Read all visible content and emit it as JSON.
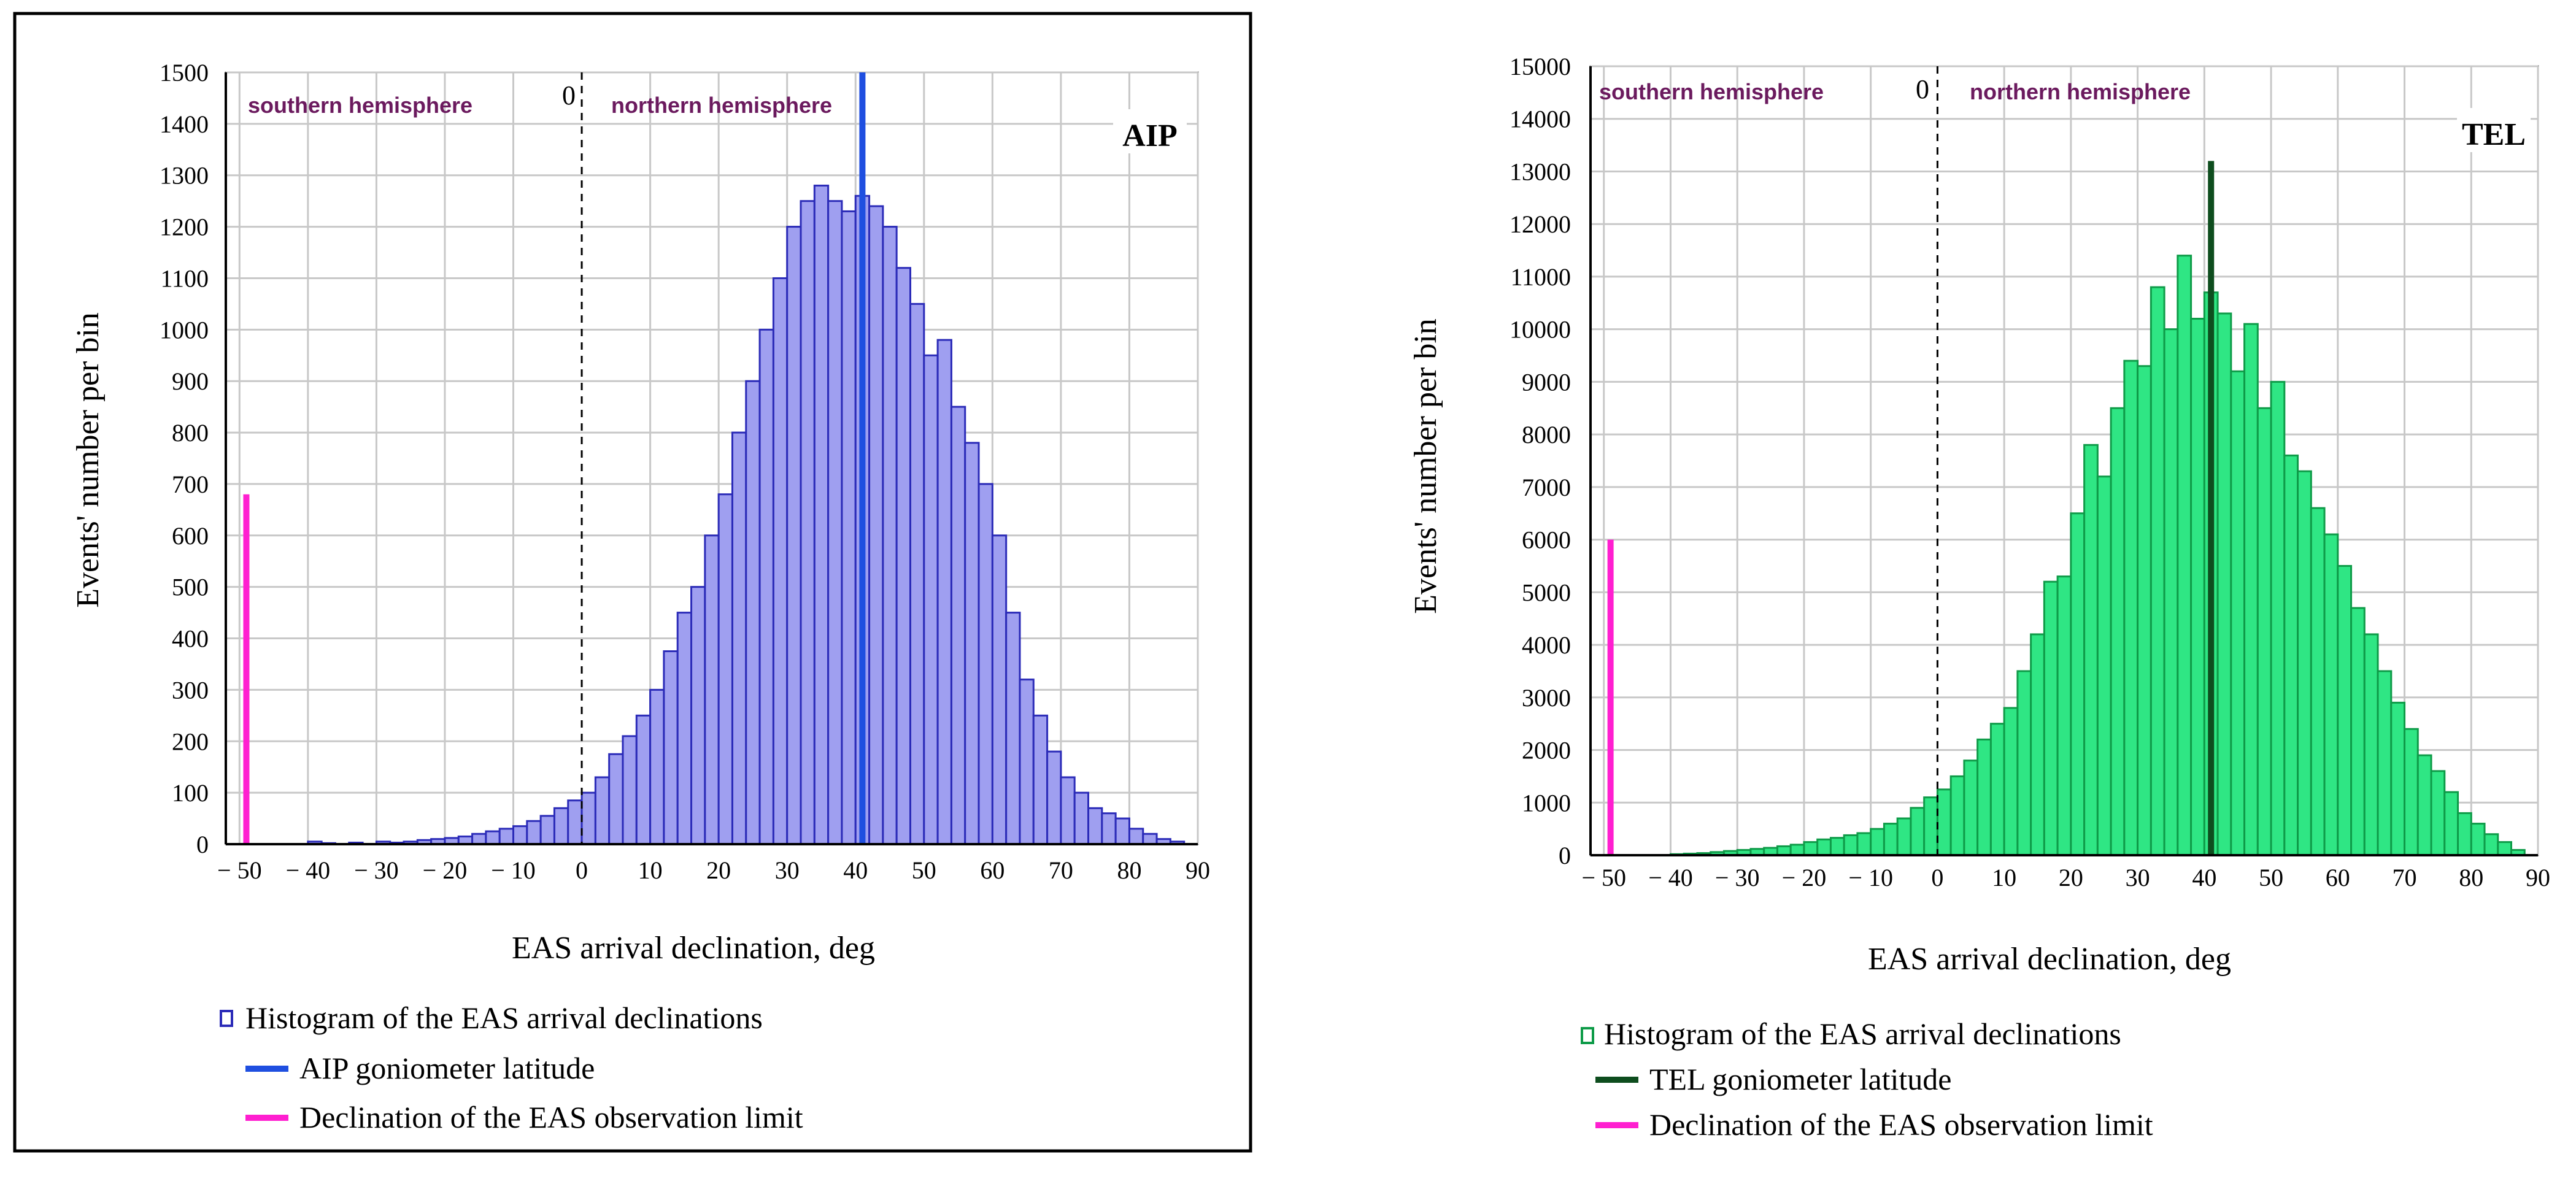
{
  "chart_data": [
    {
      "type": "bar",
      "tag": "AIP",
      "colors": {
        "bar_fill": "#9f9ff0",
        "bar_stroke": "#2b2bb8",
        "latitude_line": "#1f4fe0",
        "limit_line": "#ff1fd0"
      },
      "title": "",
      "xlabel": "EAS arrival  declination, deg",
      "ylabel": "Events' number per bin",
      "xlim": [
        -52,
        90
      ],
      "ylim": [
        0,
        1500
      ],
      "xticks": [
        -50,
        -40,
        -30,
        -20,
        -10,
        0,
        10,
        20,
        30,
        40,
        50,
        60,
        70,
        80,
        90
      ],
      "xtick_labels": [
        "− 50",
        "− 40",
        "− 30",
        "− 20",
        "− 10",
        "0",
        "10",
        "20",
        "30",
        "40",
        "50",
        "60",
        "70",
        "80",
        "90"
      ],
      "yticks": [
        0,
        100,
        200,
        300,
        400,
        500,
        600,
        700,
        800,
        900,
        1000,
        1100,
        1200,
        1300,
        1400,
        1500
      ],
      "ytick_labels": [
        "0",
        "100",
        "200",
        "300",
        "400",
        "500",
        "600",
        "700",
        "800",
        "900",
        "1000",
        "1100",
        "1200",
        "1300",
        "1400",
        "1500"
      ],
      "grid": true,
      "bin_width": 2,
      "bin_starts": [
        -50,
        -48,
        -46,
        -44,
        -42,
        -40,
        -38,
        -36,
        -34,
        -32,
        -30,
        -28,
        -26,
        -24,
        -22,
        -20,
        -18,
        -16,
        -14,
        -12,
        -10,
        -8,
        -6,
        -4,
        -2,
        0,
        2,
        4,
        6,
        8,
        10,
        12,
        14,
        16,
        18,
        20,
        22,
        24,
        26,
        28,
        30,
        32,
        34,
        36,
        38,
        40,
        42,
        44,
        46,
        48,
        50,
        52,
        54,
        56,
        58,
        60,
        62,
        64,
        66,
        68,
        70,
        72,
        74,
        76,
        78,
        80,
        82,
        84,
        86
      ],
      "values": [
        0,
        0,
        0,
        0,
        0,
        5,
        2,
        0,
        3,
        0,
        5,
        3,
        5,
        8,
        10,
        12,
        15,
        20,
        25,
        30,
        35,
        45,
        55,
        70,
        85,
        100,
        130,
        175,
        210,
        250,
        300,
        375,
        450,
        500,
        600,
        680,
        800,
        900,
        1000,
        1100,
        1200,
        1250,
        1280,
        1250,
        1230,
        1260,
        1240,
        1200,
        1120,
        1050,
        950,
        980,
        850,
        780,
        700,
        600,
        450,
        320,
        250,
        180,
        130,
        100,
        70,
        60,
        50,
        30,
        20,
        10,
        5
      ],
      "reference_lines": {
        "goniometer_latitude": 41,
        "observation_limit": -49,
        "observation_limit_top": 680,
        "latitude_top": 1500
      },
      "hemisphere_labels": {
        "south": "southern hemisphere",
        "north": "northern hemisphere",
        "zero": "0"
      },
      "legend": [
        {
          "label": "Histogram of the EAS arrival declinations",
          "kind": "bar"
        },
        {
          "label": "AIP goniometer latitude",
          "kind": "latitude"
        },
        {
          "label": "Declination of the EAS observation limit",
          "kind": "limit"
        }
      ]
    },
    {
      "type": "bar",
      "tag": "TEL",
      "colors": {
        "bar_fill": "#2fe684",
        "bar_stroke": "#0e9b48",
        "latitude_line": "#0e4d1e",
        "limit_line": "#ff1fd0"
      },
      "title": "",
      "xlabel": "EAS arrival  declination, deg",
      "ylabel": "Events' number per bin",
      "xlim": [
        -52,
        90
      ],
      "ylim": [
        0,
        15000
      ],
      "xticks": [
        -50,
        -40,
        -30,
        -20,
        -10,
        0,
        10,
        20,
        30,
        40,
        50,
        60,
        70,
        80,
        90
      ],
      "xtick_labels": [
        "− 50",
        "− 40",
        "− 30",
        "− 20",
        "− 10",
        "0",
        "10",
        "20",
        "30",
        "40",
        "50",
        "60",
        "70",
        "80",
        "90"
      ],
      "yticks": [
        0,
        1000,
        2000,
        3000,
        4000,
        5000,
        6000,
        7000,
        8000,
        9000,
        10000,
        11000,
        12000,
        13000,
        14000,
        15000
      ],
      "ytick_labels": [
        "0",
        "1000",
        "2000",
        "3000",
        "4000",
        "5000",
        "6000",
        "7000",
        "8000",
        "9000",
        "10000",
        "11000",
        "12000",
        "13000",
        "14000",
        "15000"
      ],
      "grid": true,
      "bin_width": 2,
      "bin_starts": [
        -50,
        -48,
        -46,
        -44,
        -42,
        -40,
        -38,
        -36,
        -34,
        -32,
        -30,
        -28,
        -26,
        -24,
        -22,
        -20,
        -18,
        -16,
        -14,
        -12,
        -10,
        -8,
        -6,
        -4,
        -2,
        0,
        2,
        4,
        6,
        8,
        10,
        12,
        14,
        16,
        18,
        20,
        22,
        24,
        26,
        28,
        30,
        32,
        34,
        36,
        38,
        40,
        42,
        44,
        46,
        48,
        50,
        52,
        54,
        56,
        58,
        60,
        62,
        64,
        66,
        68,
        70,
        72,
        74,
        76,
        78,
        80,
        82,
        84,
        86
      ],
      "values": [
        0,
        0,
        0,
        0,
        0,
        20,
        30,
        40,
        60,
        80,
        100,
        120,
        140,
        170,
        200,
        250,
        300,
        330,
        380,
        420,
        500,
        600,
        700,
        900,
        1100,
        1250,
        1500,
        1800,
        2200,
        2500,
        2800,
        3500,
        4200,
        5200,
        5300,
        6500,
        7800,
        7200,
        8500,
        9400,
        9300,
        10800,
        10000,
        11400,
        10200,
        10700,
        10300,
        9200,
        10100,
        8500,
        9000,
        7600,
        7300,
        6600,
        6100,
        5500,
        4700,
        4200,
        3500,
        2900,
        2400,
        1900,
        1600,
        1200,
        800,
        600,
        400,
        250,
        100
      ],
      "reference_lines": {
        "goniometer_latitude": 41,
        "observation_limit": -49,
        "observation_limit_top": 6000,
        "latitude_top": 13200
      },
      "hemisphere_labels": {
        "south": "southern hemisphere",
        "north": "northern hemisphere",
        "zero": "0"
      },
      "legend": [
        {
          "label": "Histogram of the EAS arrival declinations",
          "kind": "bar"
        },
        {
          "label": "TEL goniometer latitude",
          "kind": "latitude"
        },
        {
          "label": "Declination of the EAS observation limit",
          "kind": "limit"
        }
      ]
    }
  ]
}
